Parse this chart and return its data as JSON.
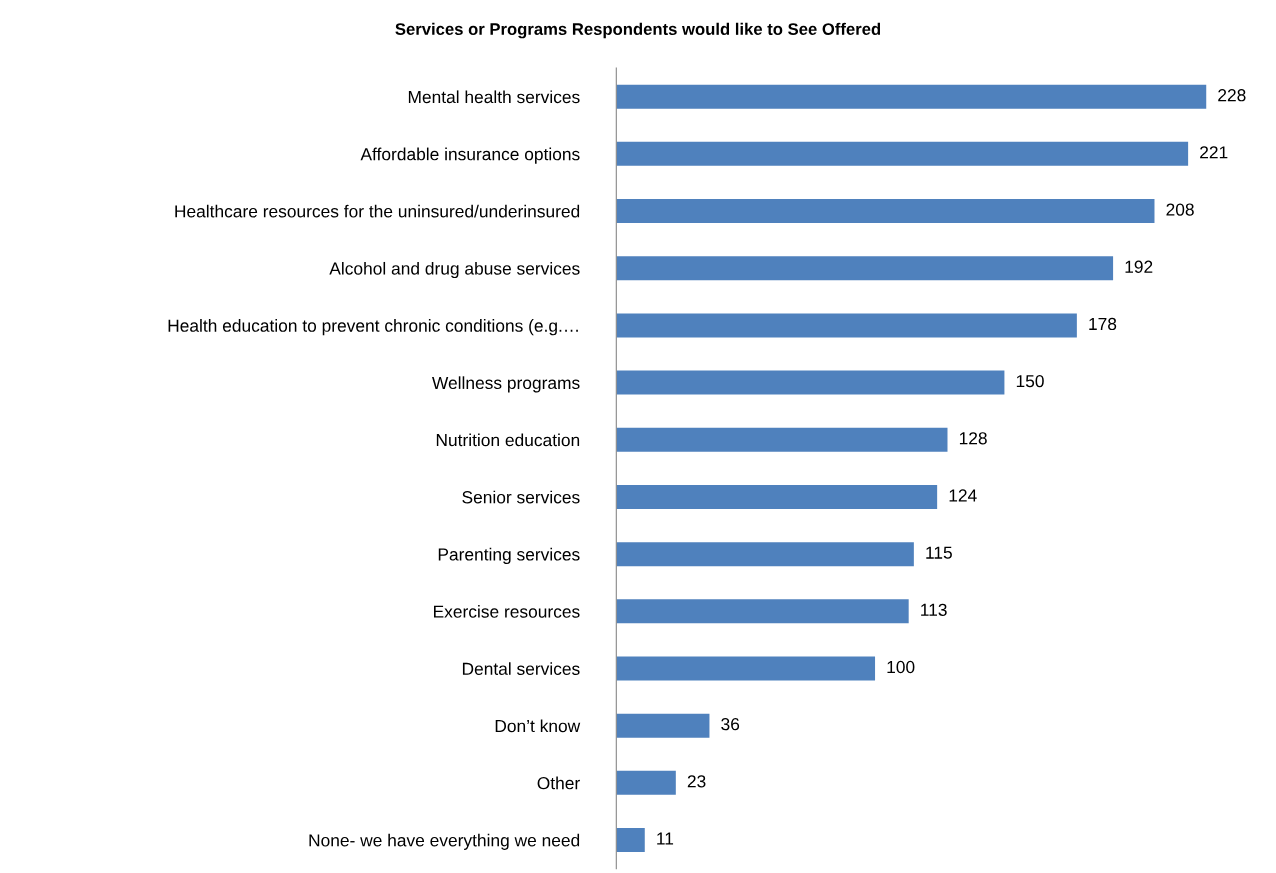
{
  "chart_data": {
    "type": "bar",
    "orientation": "horizontal",
    "title": "Services or Programs Respondents would like to See Offered",
    "categories": [
      "Mental health services",
      "Affordable insurance options",
      "Healthcare resources for the uninsured/underinsured",
      "Alcohol and drug abuse services",
      "Health education to prevent chronic conditions (e.g.…",
      "Wellness programs",
      "Nutrition education",
      "Senior services",
      "Parenting services",
      "Exercise resources",
      "Dental services",
      "Don’t know",
      "Other",
      "None- we have everything we need"
    ],
    "values": [
      228,
      221,
      208,
      192,
      178,
      150,
      128,
      124,
      115,
      113,
      100,
      36,
      23,
      11
    ],
    "color": "#4f81bd",
    "data_labels": true,
    "grid": false,
    "tick_labels": "y"
  }
}
